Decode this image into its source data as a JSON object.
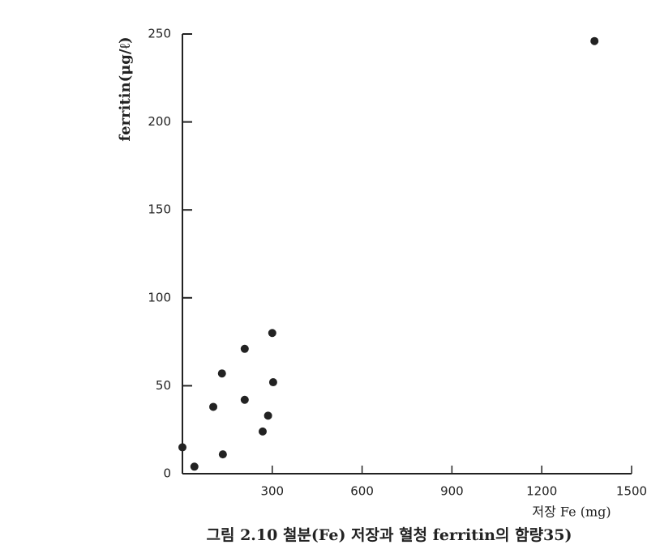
{
  "chart_data": {
    "type": "scatter",
    "caption": "그림 2.10  철분(Fe) 저장과 혈청 ferritin의 함량35)",
    "x_label": "저장 Fe  (mg)",
    "y_label": "ferritin(μg/ℓ)",
    "x": [
      0,
      40,
      103,
      132,
      135,
      208,
      208,
      268,
      286,
      300,
      303,
      1376
    ],
    "values": [
      15,
      4,
      38,
      57,
      11,
      71,
      42,
      24,
      33,
      80,
      52,
      246
    ],
    "color": "#222222",
    "xlim": [
      0,
      1500
    ],
    "xticks": [
      300,
      600,
      900,
      1200,
      1500
    ],
    "ylim": [
      0,
      250
    ],
    "yticks": [
      0,
      50,
      100,
      150,
      200,
      250
    ]
  }
}
